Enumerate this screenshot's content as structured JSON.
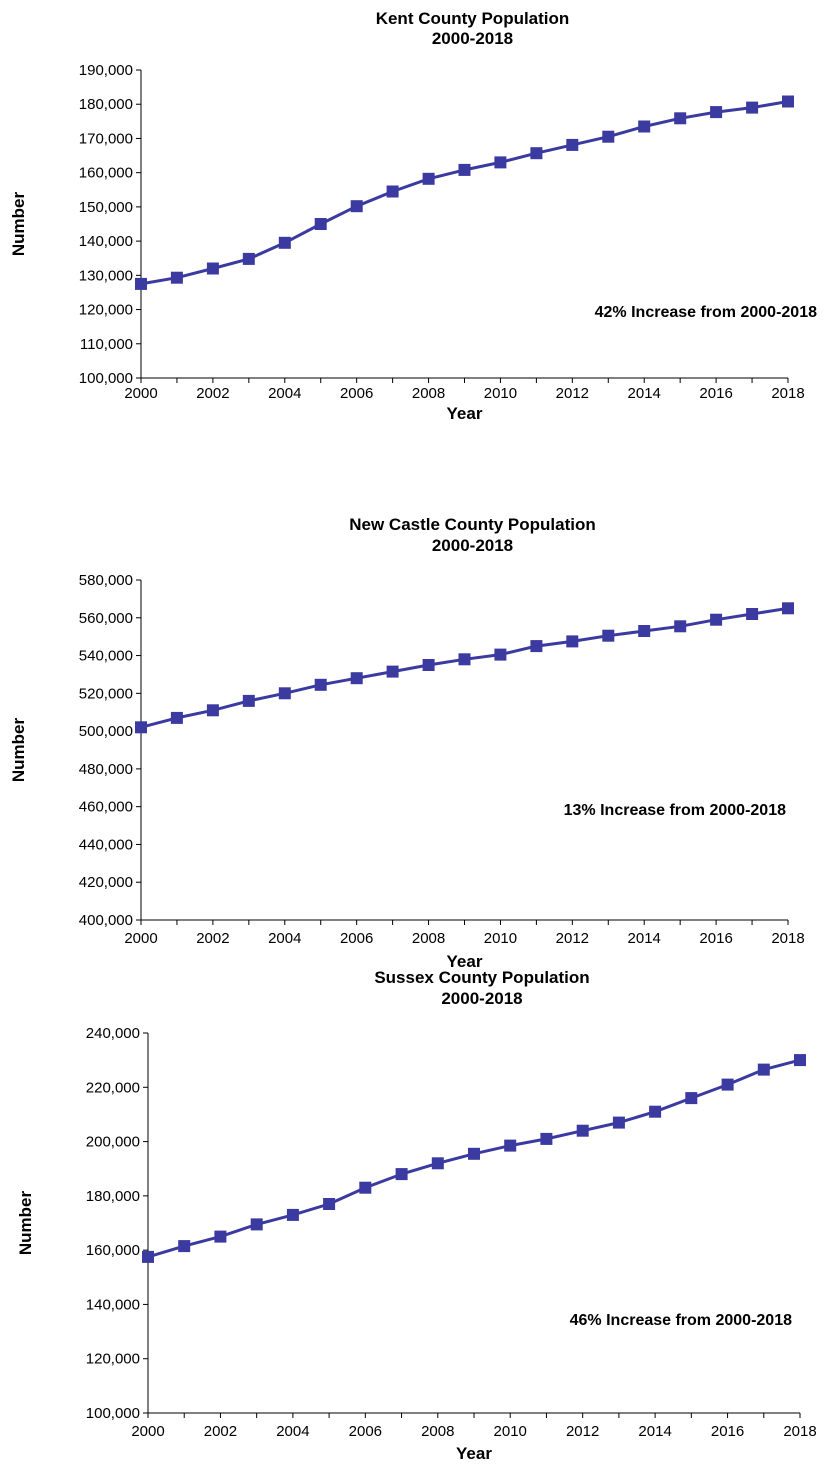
{
  "chart_data": [
    {
      "type": "line",
      "title": "Kent County Population",
      "subtitle": "2000-2018",
      "xlabel": "Year",
      "ylabel": "Number",
      "xlim": [
        2000,
        2018
      ],
      "ylim": [
        100000,
        190000
      ],
      "x_ticks": [
        2000,
        2002,
        2004,
        2006,
        2008,
        2010,
        2012,
        2014,
        2016,
        2018
      ],
      "y_ticks": [
        100000,
        110000,
        120000,
        130000,
        140000,
        150000,
        160000,
        170000,
        180000,
        190000
      ],
      "x_tick_labels": [
        "2000",
        "2002",
        "2004",
        "2006",
        "2008",
        "2010",
        "2012",
        "2014",
        "2016",
        "2018"
      ],
      "y_tick_labels": [
        "100,000",
        "110,000",
        "120,000",
        "130,000",
        "140,000",
        "150,000",
        "160,000",
        "170,000",
        "180,000",
        "190,000"
      ],
      "grid": false,
      "legend": null,
      "annotation": "42% Increase from 2000-2018",
      "color": "#3a3aa0",
      "marker": "square",
      "series": [
        {
          "x": [
            2000,
            2001,
            2002,
            2003,
            2004,
            2005,
            2006,
            2007,
            2008,
            2009,
            2010,
            2011,
            2012,
            2013,
            2014,
            2015,
            2016,
            2017,
            2018
          ],
          "values": [
            127500,
            129300,
            132000,
            134800,
            139500,
            145000,
            150200,
            154500,
            158200,
            160800,
            163000,
            165700,
            168100,
            170500,
            173500,
            175900,
            177700,
            179000,
            180800
          ]
        }
      ]
    },
    {
      "type": "line",
      "title": "New Castle County Population",
      "subtitle": "2000-2018",
      "xlabel": "Year",
      "ylabel": "Number",
      "xlim": [
        2000,
        2018
      ],
      "ylim": [
        400000,
        580000
      ],
      "x_ticks": [
        2000,
        2002,
        2004,
        2006,
        2008,
        2010,
        2012,
        2014,
        2016,
        2018
      ],
      "y_ticks": [
        400000,
        420000,
        440000,
        460000,
        480000,
        500000,
        520000,
        540000,
        560000,
        580000
      ],
      "x_tick_labels": [
        "2000",
        "2002",
        "2004",
        "2006",
        "2008",
        "2010",
        "2012",
        "2014",
        "2016",
        "2018"
      ],
      "y_tick_labels": [
        "400,000",
        "420,000",
        "440,000",
        "460,000",
        "480,000",
        "500,000",
        "520,000",
        "540,000",
        "560,000",
        "580,000"
      ],
      "grid": false,
      "legend": null,
      "annotation": "13% Increase from 2000-2018",
      "color": "#3a3aa0",
      "marker": "square",
      "series": [
        {
          "x": [
            2000,
            2001,
            2002,
            2003,
            2004,
            2005,
            2006,
            2007,
            2008,
            2009,
            2010,
            2011,
            2012,
            2013,
            2014,
            2015,
            2016,
            2017,
            2018
          ],
          "values": [
            502000,
            507000,
            511000,
            516000,
            520000,
            524500,
            528000,
            531500,
            535000,
            538000,
            540500,
            545000,
            547500,
            550500,
            553000,
            555500,
            559000,
            562000,
            565000
          ]
        }
      ]
    },
    {
      "type": "line",
      "title": "Sussex County Population",
      "subtitle": "2000-2018",
      "xlabel": "Year",
      "ylabel": "Number",
      "xlim": [
        2000,
        2018
      ],
      "ylim": [
        100000,
        240000
      ],
      "x_ticks": [
        2000,
        2002,
        2004,
        2006,
        2008,
        2010,
        2012,
        2014,
        2016,
        2018
      ],
      "y_ticks": [
        100000,
        120000,
        140000,
        160000,
        180000,
        200000,
        220000,
        240000
      ],
      "x_tick_labels": [
        "2000",
        "2002",
        "2004",
        "2006",
        "2008",
        "2010",
        "2012",
        "2014",
        "2016",
        "2018"
      ],
      "y_tick_labels": [
        "100,000",
        "120,000",
        "140,000",
        "160,000",
        "180,000",
        "200,000",
        "220,000",
        "240,000"
      ],
      "grid": false,
      "legend": null,
      "annotation": "46% Increase from 2000-2018",
      "color": "#3a3aa0",
      "marker": "square",
      "series": [
        {
          "x": [
            2000,
            2001,
            2002,
            2003,
            2004,
            2005,
            2006,
            2007,
            2008,
            2009,
            2010,
            2011,
            2012,
            2013,
            2014,
            2015,
            2016,
            2017,
            2018
          ],
          "values": [
            157500,
            161500,
            165000,
            169500,
            173000,
            177000,
            183000,
            188000,
            192000,
            195500,
            198500,
            201000,
            204000,
            207000,
            211000,
            216000,
            221000,
            226500,
            230000
          ]
        }
      ]
    }
  ]
}
